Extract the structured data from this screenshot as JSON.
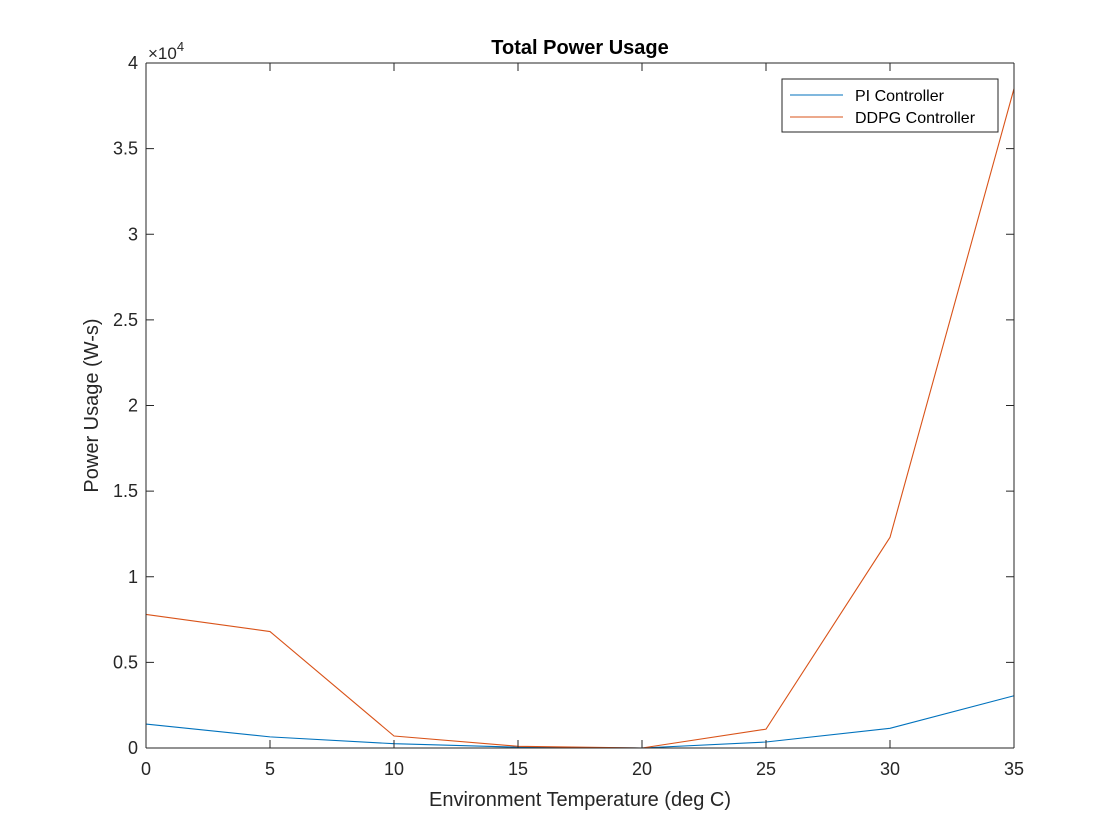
{
  "chart_data": {
    "type": "line",
    "title": "Total Power Usage",
    "xlabel": "Environment Temperature (deg C)",
    "ylabel": "Power Usage (W-s)",
    "xlim": [
      0,
      35
    ],
    "ylim": [
      0,
      40000
    ],
    "y_tick_scale_label": "×10",
    "y_tick_scale_exponent": "4",
    "x_ticks": [
      0,
      5,
      10,
      15,
      20,
      25,
      30,
      35
    ],
    "y_ticks": [
      0,
      5000,
      10000,
      15000,
      20000,
      25000,
      30000,
      35000,
      40000
    ],
    "y_tick_labels": [
      "0",
      "0.5",
      "1",
      "1.5",
      "2",
      "2.5",
      "3",
      "3.5",
      "4"
    ],
    "x": [
      0,
      5,
      10,
      15,
      20,
      25,
      30,
      35
    ],
    "series": [
      {
        "name": "PI Controller",
        "color": "#0072BD",
        "values": [
          1400,
          650,
          250,
          50,
          0,
          350,
          1150,
          3050
        ]
      },
      {
        "name": "DDPG Controller",
        "color": "#D95319",
        "values": [
          7800,
          6800,
          700,
          100,
          0,
          1100,
          12300,
          38500
        ]
      }
    ],
    "legend_position": "top-right",
    "grid": false
  }
}
